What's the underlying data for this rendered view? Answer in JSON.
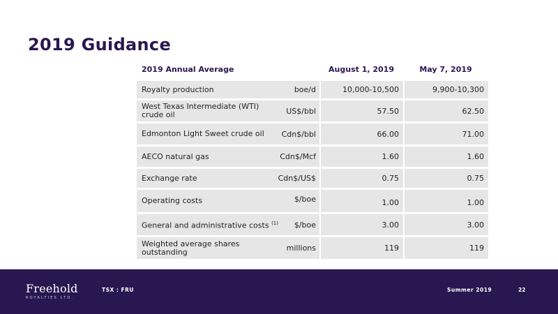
{
  "slide": {
    "title": "2019 Guidance"
  },
  "table": {
    "headers": {
      "label": "2019 Annual Average",
      "col1": "August 1, 2019",
      "col2": "May 7, 2019"
    },
    "rows": [
      {
        "label": "Royalty production",
        "unit": "boe/d",
        "v1": "10,000-10,500",
        "v2": "9,900-10,300"
      },
      {
        "label": "West Texas Intermediate (WTI) crude oil",
        "unit": "US$/bbl",
        "v1": "57.50",
        "v2": "62.50"
      },
      {
        "label": "Edmonton Light Sweet crude oil",
        "unit": "Cdn$/bbl",
        "v1": "66.00",
        "v2": "71.00"
      },
      {
        "label": "AECO natural gas",
        "unit": "Cdn$/Mcf",
        "v1": "1.60",
        "v2": "1.60"
      },
      {
        "label": "Exchange rate",
        "unit": "Cdn$/US$",
        "v1": "0.75",
        "v2": "0.75"
      },
      {
        "label": "Operating costs",
        "unit": "$/boe",
        "v1": "1.00",
        "v2": "1.00"
      },
      {
        "label": "General and administrative costs",
        "footnote": "(1)",
        "unit": "$/boe",
        "v1": "3.00",
        "v2": "3.00"
      },
      {
        "label": "Weighted average shares outstanding",
        "unit": "millions",
        "v1": "119",
        "v2": "119"
      }
    ]
  },
  "footer": {
    "logo_main": "Freehold",
    "logo_sub": "ROYALTIES LTD.",
    "ticker": "TSX : FRU",
    "season": "Summer 2019",
    "page": "22",
    "background": "#2a1650"
  },
  "colors": {
    "title": "#2a1650",
    "cell_background": "#e6e6e6"
  }
}
